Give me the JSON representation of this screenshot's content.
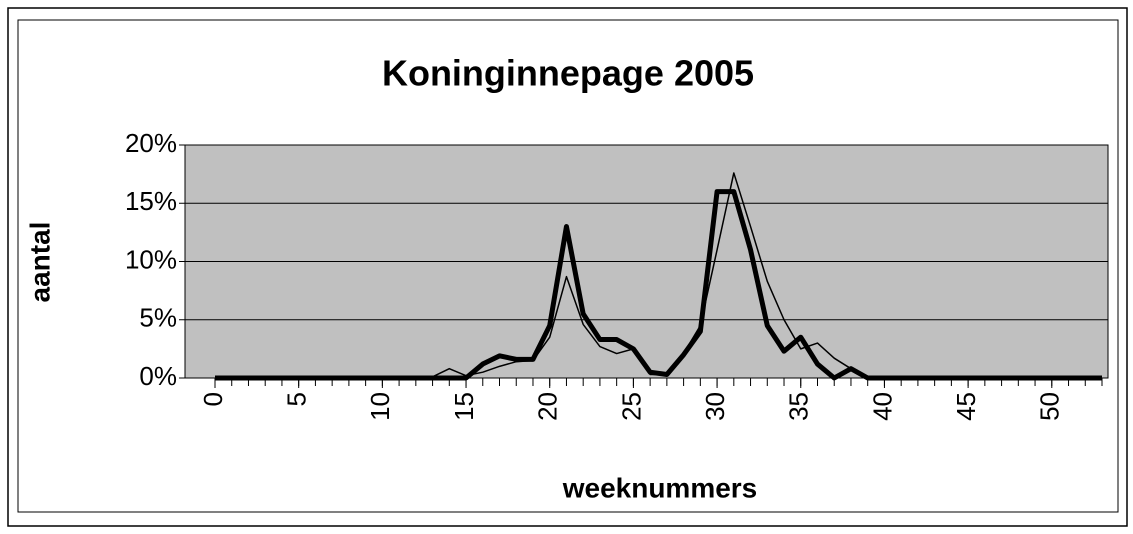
{
  "chart_data": {
    "type": "line",
    "title": "Koninginnepage 2005",
    "y_label": "aantal",
    "x_label": "weeknummers",
    "x": [
      0,
      1,
      2,
      3,
      4,
      5,
      6,
      7,
      8,
      9,
      10,
      11,
      12,
      13,
      14,
      15,
      16,
      17,
      18,
      19,
      20,
      21,
      22,
      23,
      24,
      25,
      26,
      27,
      28,
      29,
      30,
      31,
      32,
      33,
      34,
      35,
      36,
      37,
      38,
      39,
      40,
      41,
      42,
      43,
      44,
      45,
      46,
      47,
      48,
      49,
      50,
      51,
      52,
      53
    ],
    "series": [
      {
        "color": "#000000",
        "values": [
          0,
          0,
          0,
          0,
          0,
          0,
          0,
          0,
          0,
          0,
          0,
          0,
          0,
          0,
          0,
          0,
          1.2,
          1.9,
          1.6,
          1.6,
          4.5,
          13,
          5.5,
          3.3,
          3.3,
          2.5,
          0.5,
          0.3,
          2,
          4,
          16,
          16,
          11,
          4.5,
          2.3,
          3.5,
          1.2,
          0,
          0.8,
          0,
          0,
          0,
          0,
          0,
          0,
          0,
          0,
          0,
          0,
          0,
          0,
          0,
          0,
          0
        ]
      },
      {
        "color": "#000000",
        "values": [
          0,
          0,
          0,
          0,
          0,
          0,
          0,
          0,
          0,
          0,
          0,
          0,
          0,
          0.1,
          0.8,
          0.2,
          0.5,
          1,
          1.4,
          1.5,
          3.5,
          8.7,
          4.6,
          2.7,
          2.1,
          2.5,
          0.3,
          0.3,
          2.1,
          4.5,
          11,
          17.6,
          13,
          8.3,
          5,
          2.5,
          3,
          1.7,
          0.8,
          0.1,
          0,
          0,
          0,
          0,
          0,
          0,
          0,
          0,
          0,
          0,
          0,
          0,
          0,
          0
        ]
      }
    ],
    "xlim": [
      0,
      53
    ],
    "xticks": [
      0,
      5,
      10,
      15,
      20,
      25,
      30,
      35,
      40,
      45,
      50
    ],
    "ylim": [
      0,
      20
    ],
    "yticks": [
      {
        "value": 0,
        "label": "0%"
      },
      {
        "value": 5,
        "label": "5%"
      },
      {
        "value": 10,
        "label": "10%"
      },
      {
        "value": 15,
        "label": "15%"
      },
      {
        "value": 20,
        "label": "20%"
      }
    ],
    "grid": true,
    "plot_background": "#c0c0c0"
  }
}
